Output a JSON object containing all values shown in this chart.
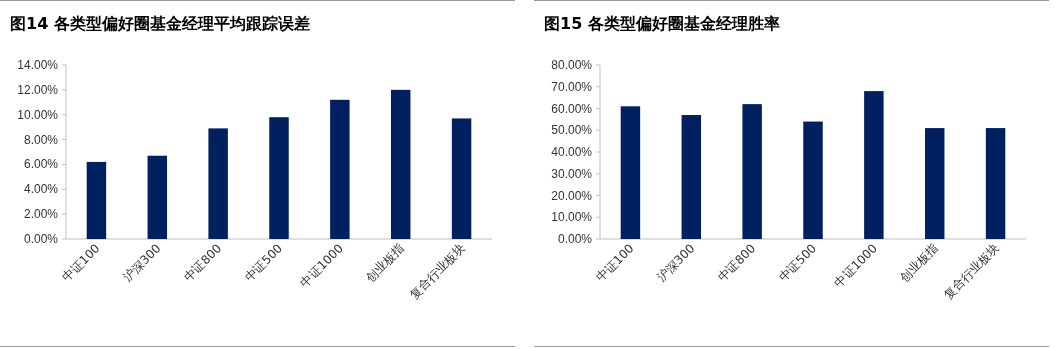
{
  "chart_data": [
    {
      "type": "bar",
      "title": "图14 各类型偏好圈基金经理平均跟踪误差",
      "categories": [
        "中证100",
        "沪深300",
        "中证800",
        "中证500",
        "中证1000",
        "创业板指",
        "复合行业板块"
      ],
      "color": "#002060",
      "values": [
        6.2,
        6.7,
        8.9,
        9.8,
        11.2,
        12.0,
        9.7
      ],
      "ylim": [
        0,
        14
      ],
      "yticks": [
        {
          "value": 0,
          "label": "0.00%"
        },
        {
          "value": 2,
          "label": "2.00%"
        },
        {
          "value": 4,
          "label": "4.00%"
        },
        {
          "value": 6,
          "label": "6.00%"
        },
        {
          "value": 8,
          "label": "8.00%"
        },
        {
          "value": 10,
          "label": "10.00%"
        },
        {
          "value": 12,
          "label": "12.00%"
        },
        {
          "value": 14,
          "label": "14.00%"
        }
      ],
      "grid": false
    },
    {
      "type": "bar",
      "title": "图15 各类型偏好圈基金经理胜率",
      "categories": [
        "中证100",
        "沪深300",
        "中证800",
        "中证500",
        "中证1000",
        "创业板指",
        "复合行业板块"
      ],
      "color": "#002060",
      "values": [
        61,
        57,
        62,
        54,
        68,
        51,
        51
      ],
      "ylim": [
        0,
        80
      ],
      "yticks": [
        {
          "value": 0,
          "label": "0.00%"
        },
        {
          "value": 10,
          "label": "10.00%"
        },
        {
          "value": 20,
          "label": "20.00%"
        },
        {
          "value": 30,
          "label": "30.00%"
        },
        {
          "value": 40,
          "label": "40.00%"
        },
        {
          "value": 50,
          "label": "50.00%"
        },
        {
          "value": 60,
          "label": "60.00%"
        },
        {
          "value": 70,
          "label": "70.00%"
        },
        {
          "value": 80,
          "label": "80.00%"
        }
      ],
      "grid": false
    }
  ]
}
